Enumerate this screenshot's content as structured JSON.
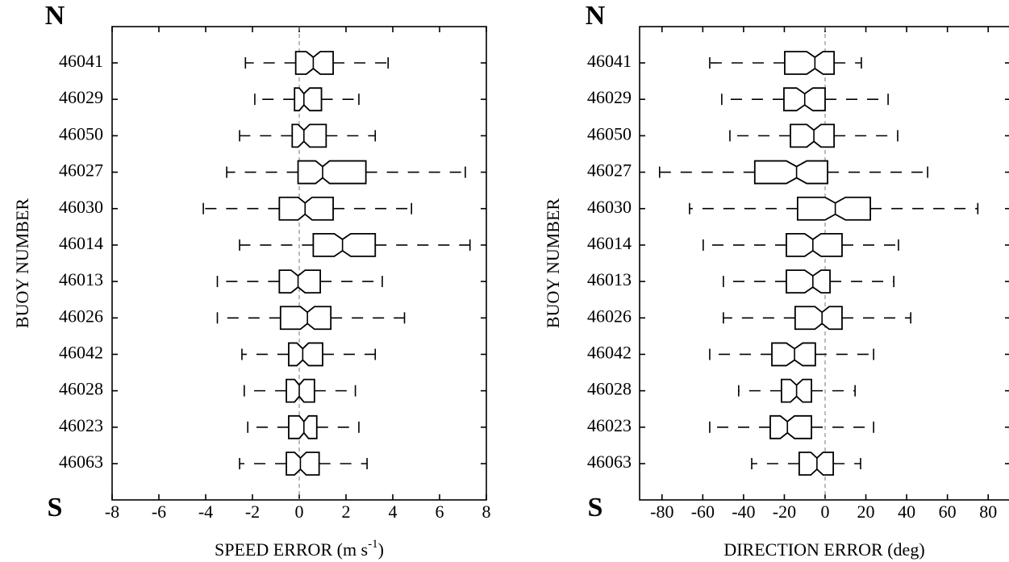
{
  "chart_data": [
    {
      "type": "box",
      "top_label": "N",
      "bottom_label": "S",
      "ylabel": "BUOY NUMBER",
      "xlabel": [
        "SPEED ERROR (m s",
        "-1",
        ")"
      ],
      "categories": [
        "46041",
        "46029",
        "46050",
        "46027",
        "46030",
        "46014",
        "46013",
        "46026",
        "46042",
        "46028",
        "46023",
        "46063"
      ],
      "whisker_low": [
        -2.3,
        -1.9,
        -2.55,
        -3.1,
        -4.1,
        -2.55,
        -3.5,
        -3.5,
        -2.45,
        -2.35,
        -2.2,
        -2.55
      ],
      "q1": [
        -0.15,
        -0.2,
        -0.3,
        -0.05,
        -0.85,
        0.6,
        -0.85,
        -0.8,
        -0.45,
        -0.55,
        -0.45,
        -0.55
      ],
      "median": [
        0.6,
        0.2,
        0.2,
        1.0,
        0.25,
        1.85,
        -0.05,
        0.35,
        0.15,
        0.0,
        0.2,
        0.05
      ],
      "q3": [
        1.45,
        0.95,
        1.15,
        2.85,
        1.45,
        3.25,
        0.9,
        1.35,
        1.0,
        0.65,
        0.75,
        0.85
      ],
      "whisker_high": [
        3.8,
        2.55,
        3.25,
        7.1,
        4.8,
        7.3,
        3.55,
        4.5,
        3.25,
        2.4,
        2.55,
        2.9
      ],
      "notch_low": [
        0.3,
        0.0,
        -0.05,
        0.7,
        -0.05,
        1.5,
        -0.35,
        0.05,
        -0.1,
        -0.2,
        0.0,
        -0.2
      ],
      "notch_high": [
        0.9,
        0.45,
        0.45,
        1.3,
        0.55,
        2.2,
        0.25,
        0.65,
        0.4,
        0.2,
        0.4,
        0.3
      ],
      "zero_line": 0,
      "xlim": [
        -8,
        8
      ],
      "xticks": [
        -8,
        -6,
        -4,
        -2,
        0,
        2,
        4,
        6,
        8
      ],
      "color": "#000000"
    },
    {
      "type": "box",
      "top_label": "N",
      "bottom_label": "S",
      "ylabel": "BUOY NUMBER",
      "xlabel": [
        "DIRECTION ERROR (deg)"
      ],
      "categories": [
        "46041",
        "46029",
        "46050",
        "46027",
        "46030",
        "46014",
        "46013",
        "46026",
        "46042",
        "46028",
        "46023",
        "46063"
      ],
      "whisker_low": [
        -56.6,
        -50.7,
        -46.7,
        -81.2,
        -66.5,
        -59.8,
        -49.9,
        -49.9,
        -56.6,
        -42.4,
        -56.6,
        -36
      ],
      "q1": [
        -19.8,
        -20.2,
        -17,
        -34.5,
        -13.5,
        -19,
        -19,
        -14.7,
        -26.1,
        -21.4,
        -26.9,
        -12.7
      ],
      "median": [
        -5,
        -10,
        -5.5,
        -14,
        5,
        -6,
        -6,
        -1.5,
        -15,
        -14,
        -18.5,
        -4
      ],
      "q3": [
        4.4,
        0,
        4.4,
        1.2,
        22.2,
        8.3,
        2.4,
        8.3,
        -4.8,
        -6.7,
        -6.7,
        4
      ],
      "whisker_high": [
        17.8,
        30.9,
        35.6,
        50.3,
        74.9,
        36,
        33.7,
        42,
        23.8,
        14.7,
        23.8,
        17.4
      ],
      "notch_low": [
        -9,
        -14,
        -9,
        -19,
        0,
        -10,
        -10,
        -5,
        -19,
        -17,
        -22,
        -7
      ],
      "notch_high": [
        -1,
        -6,
        -2,
        -9,
        10,
        -2,
        -2,
        2,
        -11,
        -11,
        -15,
        -1
      ],
      "zero_line": 0,
      "xlim": [
        -91,
        91
      ],
      "xticks": [
        -80,
        -60,
        -40,
        -20,
        0,
        20,
        40,
        60,
        80
      ],
      "color": "#000000"
    }
  ]
}
